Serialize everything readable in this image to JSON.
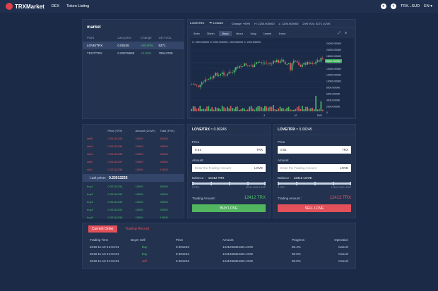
{
  "header": {
    "logo": "TRXMarket",
    "nav": [
      "DEX",
      "Token Listing"
    ],
    "account": "TRX...SUD",
    "lang": "EN"
  },
  "market": {
    "title": "market",
    "columns": [
      "Pairs",
      "Last price",
      "Change",
      "24H VOL"
    ],
    "rows": [
      {
        "pair": "LOVE/TRX",
        "price": "0.00245",
        "change": "+90.00%",
        "vol": "5271"
      },
      {
        "pair": "TEST/TRX",
        "price": "0.00378699",
        "change": "+2.22%",
        "vol": "78543789"
      }
    ]
  },
  "chart": {
    "pair": "LOVE/TRX",
    "price": "0.00245",
    "change": "Change: +90%",
    "high": "H: 2200.000000",
    "low": "L: 1200.000000",
    "vol": "24H VOL: 5271 LOVE",
    "tabs": [
      "5min",
      "30min",
      "1hour",
      "4hour",
      "1day",
      "1week",
      "1mon"
    ],
    "active_tab": "1hour",
    "ohlc": "O: 1000.000000  H: 2200.000000  L: 500.000000  C: 1000.000000",
    "y_ticks": [
      "24000.000000",
      "20000.000000",
      "18000.000000",
      "16000.000000",
      "14000.000000",
      "12000.000000",
      "10000.000000",
      "8000.000000",
      "6000.000000",
      "4000.000000",
      "2000.000000",
      "0"
    ],
    "x_ticks": [
      "9",
      "10",
      "1800"
    ],
    "current_value": "20000.000000",
    "colors": {
      "up": "#4fc56a",
      "down": "#e45a5f"
    }
  },
  "book": {
    "columns": [
      "",
      "Price (TRX)",
      "Amount (LOVE)",
      "Total (TRX)"
    ],
    "asks": [
      {
        "name": "sell5",
        "price": "0.00114240",
        "amount": "10000",
        "total": "50000"
      },
      {
        "name": "sell4",
        "price": "0.00114239",
        "amount": "10000",
        "total": "40000"
      },
      {
        "name": "sell3",
        "price": "0.00114238",
        "amount": "10000",
        "total": "30000"
      },
      {
        "name": "sell2",
        "price": "0.00114237",
        "amount": "10000",
        "total": "20000"
      },
      {
        "name": "sell1",
        "price": "0.00114236",
        "amount": "10000",
        "total": "10000"
      }
    ],
    "last_label": "Last price:",
    "last_value": "0.23013235",
    "bids": [
      {
        "name": "buy1",
        "price": "0.00114234",
        "amount": "10000",
        "total": "50000"
      },
      {
        "name": "buy2",
        "price": "0.00114233",
        "amount": "10000",
        "total": "40000"
      },
      {
        "name": "buy3",
        "price": "0.00114232",
        "amount": "10000",
        "total": "30000"
      },
      {
        "name": "buy4",
        "price": "0.00114231",
        "amount": "10000",
        "total": "20000"
      },
      {
        "name": "buy5",
        "price": "0.00114230",
        "amount": "10000",
        "total": "10000"
      }
    ]
  },
  "buy": {
    "title": "LOVE/TRX",
    "title_price": "≈ 0.00245",
    "price_label": "Price",
    "price_value": "0.01",
    "price_unit": "TRX",
    "amount_label": "Amount",
    "amount_placeholder": "Enter the Trading Amount",
    "amount_unit": "LOVE",
    "balance_label": "Balance :",
    "balance_value": "12412 TRX",
    "range_min": "0 TRX",
    "range_max": "12111.1242 LOVE",
    "trading_label": "Trading Amount :",
    "trading_value": "12412 TRX",
    "button": "BUY LOVE"
  },
  "sell": {
    "title": "LOVE/TRX",
    "title_price": "≈ 0.00245",
    "price_label": "Price",
    "price_value": "0.01",
    "price_unit": "TRX",
    "amount_label": "Amount",
    "amount_placeholder": "Enter the Trading Amount",
    "amount_unit": "LOVE",
    "balance_label": "Balance :",
    "balance_value": "12412 LOVE",
    "range_min": "0 TRX",
    "range_max": "12111.1242 LOVE",
    "trading_label": "Trading Amount :",
    "trading_value": "12412 TRX",
    "button": "SELL LOVE"
  },
  "orders": {
    "tabs": [
      "Current Order",
      "Trading Record"
    ],
    "columns": [
      "Trading Time",
      "Buyer Sell",
      "Price",
      "Amount",
      "Progress",
      "Operation"
    ],
    "rows": [
      {
        "time": "2018-11-10 21:04:01",
        "side": "buy",
        "price": "0.001234",
        "amount": "124125632432 LOVE",
        "progress": "80.4%",
        "op": "Cancel"
      },
      {
        "time": "2018-11-10 21:04:01",
        "side": "buy",
        "price": "0.001234",
        "amount": "124125632432 LOVE",
        "progress": "00.0%",
        "op": "Cancel"
      },
      {
        "time": "2018-11-10 21:04:01",
        "side": "sell",
        "price": "0.001234",
        "amount": "124125632432 LOVE",
        "progress": "00.0%",
        "op": "Cancel"
      }
    ]
  }
}
